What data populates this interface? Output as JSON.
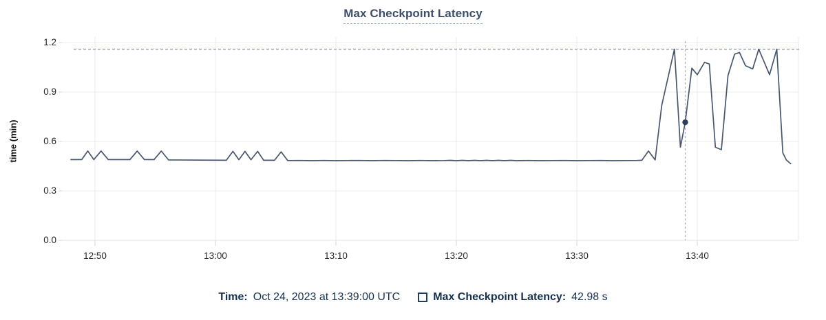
{
  "chart": {
    "title": "Max Checkpoint Latency",
    "y_axis_title": "time (min)"
  },
  "tooltip": {
    "time_label": "Time:",
    "time_value": "Oct 24, 2023 at 13:39:00 UTC",
    "series_label": "Max Checkpoint Latency:",
    "series_value": "42.98 s"
  },
  "colors": {
    "line": "#46566e",
    "marker": "#2e3f5c",
    "threshold_dash": "#8095b3",
    "crosshair_dash": "#a2aebc",
    "grid": "#ebebeb",
    "axis_line": "#e3e3e3",
    "tick_stub": "#d5d5d5",
    "title_text": "#3e4e68",
    "legend_text": "#14304f"
  },
  "chart_data": {
    "type": "line",
    "title": "Max Checkpoint Latency",
    "xlabel": "",
    "ylabel": "time (min)",
    "x_unit": "minutes after 12:48 UTC, Oct 24 2023",
    "y_unit": "min",
    "ylim": [
      0,
      1.2
    ],
    "xlim_minutes": [
      -0.8,
      60.5
    ],
    "grid": true,
    "legend_position": "bottom",
    "y_ticks": [
      {
        "v": 0.0,
        "label": "0.0"
      },
      {
        "v": 0.3,
        "label": "0.3"
      },
      {
        "v": 0.6,
        "label": "0.6"
      },
      {
        "v": 0.9,
        "label": "0.9"
      },
      {
        "v": 1.2,
        "label": "1.2"
      }
    ],
    "x_ticks": [
      {
        "t": 2,
        "label": "12:50"
      },
      {
        "t": 12,
        "label": "13:00"
      },
      {
        "t": 22,
        "label": "13:10"
      },
      {
        "t": 32,
        "label": "13:20"
      },
      {
        "t": 42,
        "label": "13:30"
      },
      {
        "t": 52,
        "label": "13:40"
      }
    ],
    "threshold_value": 1.16,
    "selected_point": {
      "t": 51,
      "value_min": 0.7163,
      "time_label": "13:39:00 UTC",
      "value_label": "42.98 s"
    },
    "series": [
      {
        "name": "Max Checkpoint Latency",
        "points": [
          [
            0,
            0.49
          ],
          [
            0.9,
            0.49
          ],
          [
            1.4,
            0.542
          ],
          [
            1.9,
            0.49
          ],
          [
            2.5,
            0.542
          ],
          [
            3.1,
            0.49
          ],
          [
            4.9,
            0.49
          ],
          [
            5.5,
            0.542
          ],
          [
            6.1,
            0.49
          ],
          [
            6.9,
            0.49
          ],
          [
            7.5,
            0.542
          ],
          [
            8.1,
            0.488
          ],
          [
            12.9,
            0.486
          ],
          [
            13.45,
            0.54
          ],
          [
            13.95,
            0.489
          ],
          [
            14.45,
            0.54
          ],
          [
            14.95,
            0.489
          ],
          [
            15.5,
            0.54
          ],
          [
            16.0,
            0.486
          ],
          [
            16.9,
            0.486
          ],
          [
            17.45,
            0.537
          ],
          [
            18.0,
            0.484
          ],
          [
            19,
            0.4845
          ],
          [
            20,
            0.4835
          ],
          [
            21,
            0.4845
          ],
          [
            22,
            0.4835
          ],
          [
            23,
            0.484
          ],
          [
            24,
            0.4845
          ],
          [
            25,
            0.4835
          ],
          [
            26,
            0.4845
          ],
          [
            27,
            0.484
          ],
          [
            28,
            0.4835
          ],
          [
            29,
            0.4845
          ],
          [
            30,
            0.4835
          ],
          [
            31,
            0.484
          ],
          [
            31.5,
            0.4855
          ],
          [
            32,
            0.4835
          ],
          [
            32.5,
            0.4855
          ],
          [
            33,
            0.4835
          ],
          [
            33.5,
            0.4855
          ],
          [
            34,
            0.4835
          ],
          [
            34.5,
            0.4855
          ],
          [
            35,
            0.4835
          ],
          [
            35.5,
            0.4855
          ],
          [
            36,
            0.4835
          ],
          [
            36.5,
            0.4855
          ],
          [
            37,
            0.4835
          ],
          [
            38,
            0.4845
          ],
          [
            39,
            0.4835
          ],
          [
            40,
            0.484
          ],
          [
            41,
            0.4845
          ],
          [
            42,
            0.4835
          ],
          [
            43,
            0.484
          ],
          [
            44,
            0.4845
          ],
          [
            45,
            0.4835
          ],
          [
            46,
            0.484
          ],
          [
            47,
            0.4845
          ],
          [
            47.4,
            0.486
          ],
          [
            47.95,
            0.542
          ],
          [
            48.5,
            0.488
          ],
          [
            49.05,
            0.82
          ],
          [
            50.1,
            1.16
          ],
          [
            50.6,
            0.565
          ],
          [
            51.0,
            0.7163
          ],
          [
            51.55,
            1.045
          ],
          [
            52.0,
            1.005
          ],
          [
            52.6,
            1.08
          ],
          [
            53.0,
            1.07
          ],
          [
            53.5,
            0.565
          ],
          [
            54.0,
            0.55
          ],
          [
            54.55,
            1.0
          ],
          [
            55.1,
            1.13
          ],
          [
            55.5,
            1.14
          ],
          [
            56.0,
            1.06
          ],
          [
            56.6,
            1.04
          ],
          [
            57.1,
            1.16
          ],
          [
            58.0,
            1.005
          ],
          [
            58.6,
            1.16
          ],
          [
            59.1,
            0.53
          ],
          [
            59.4,
            0.487
          ],
          [
            59.75,
            0.465
          ]
        ]
      }
    ]
  }
}
